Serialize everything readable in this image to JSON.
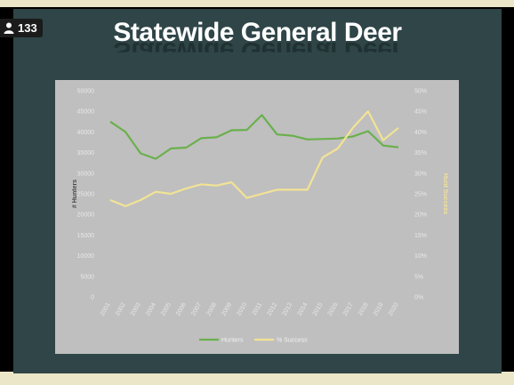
{
  "viewer": {
    "count": "133",
    "icon": "person-icon"
  },
  "slide": {
    "title": "Statewide General Deer"
  },
  "colors": {
    "hunters": "#6ab04c",
    "success": "#f2e394",
    "slide_bg": "#2f4548",
    "plot_bg": "#bfbfbf"
  },
  "chart_data": {
    "type": "line",
    "title": "Statewide General Deer",
    "x": [
      "2001",
      "2002",
      "2003",
      "2004",
      "2005",
      "2006",
      "2007",
      "2008",
      "2009",
      "2010",
      "2011",
      "2012",
      "2013",
      "2014",
      "2015",
      "2016",
      "2017",
      "2018",
      "2019",
      "2020"
    ],
    "ylabel": "# Hunters",
    "y2label": "Hunt Success",
    "ylim": [
      0,
      50000
    ],
    "y2lim": [
      0,
      50
    ],
    "yticks": [
      "0",
      "5000",
      "10000",
      "15000",
      "20000",
      "25000",
      "30000",
      "35000",
      "40000",
      "45000",
      "50000"
    ],
    "y2ticks": [
      "0%",
      "5%",
      "10%",
      "15%",
      "20%",
      "25%",
      "30%",
      "35%",
      "40%",
      "45%",
      "50%"
    ],
    "series": [
      {
        "name": "Hunters",
        "axis": "left",
        "values": [
          42500,
          40000,
          34800,
          33500,
          36000,
          36200,
          38500,
          38700,
          40400,
          40500,
          44100,
          39400,
          39100,
          38200,
          38300,
          38400,
          38900,
          40200,
          36700,
          36300
        ]
      },
      {
        "name": "% Success",
        "axis": "right",
        "values": [
          23.5,
          22,
          23.5,
          25.5,
          25,
          26.3,
          27.3,
          27,
          27.8,
          24,
          25,
          26,
          26,
          26,
          33.8,
          36,
          41,
          45,
          38,
          41
        ]
      }
    ],
    "grid": false,
    "legend": "bottom"
  }
}
